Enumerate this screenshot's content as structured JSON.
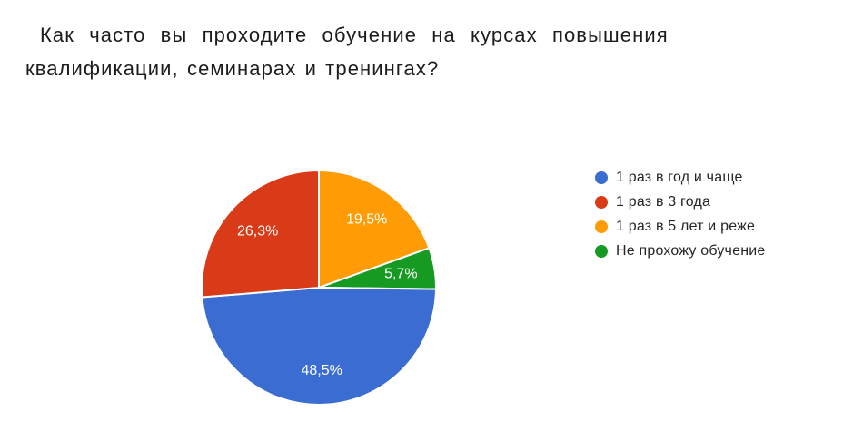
{
  "page": {
    "background": "#ffffff"
  },
  "title": {
    "line1": "Как часто вы проходите обучение на курсах повышения",
    "line2": "квалификации, семинарах и тренингах?"
  },
  "chart_data": {
    "type": "pie",
    "title": "Как часто вы проходите обучение на курсах повышения квалификации, семинарах и тренингах?",
    "slices": [
      {
        "label": "1 раз в год и чаще",
        "value": 48.5,
        "percent_label": "48,5%",
        "color": "#3b6cd1"
      },
      {
        "label": "1 раз в 3 года",
        "value": 26.3,
        "percent_label": "26,3%",
        "color": "#d93b18"
      },
      {
        "label": "1 раз в 5 лет и реже",
        "value": 19.5,
        "percent_label": "19,5%",
        "color": "#ff9b05"
      },
      {
        "label": "Не прохожу обучение",
        "value": 5.7,
        "percent_label": "5,7%",
        "color": "#169a22"
      }
    ],
    "legend_position": "right",
    "start_angle_deg": 0,
    "clockwise_draw_order": [
      2,
      3,
      0,
      1
    ],
    "percent_label_color": "#ffffff",
    "slice_border_color": "#ffffff",
    "label_radius_ratio": 0.71
  }
}
